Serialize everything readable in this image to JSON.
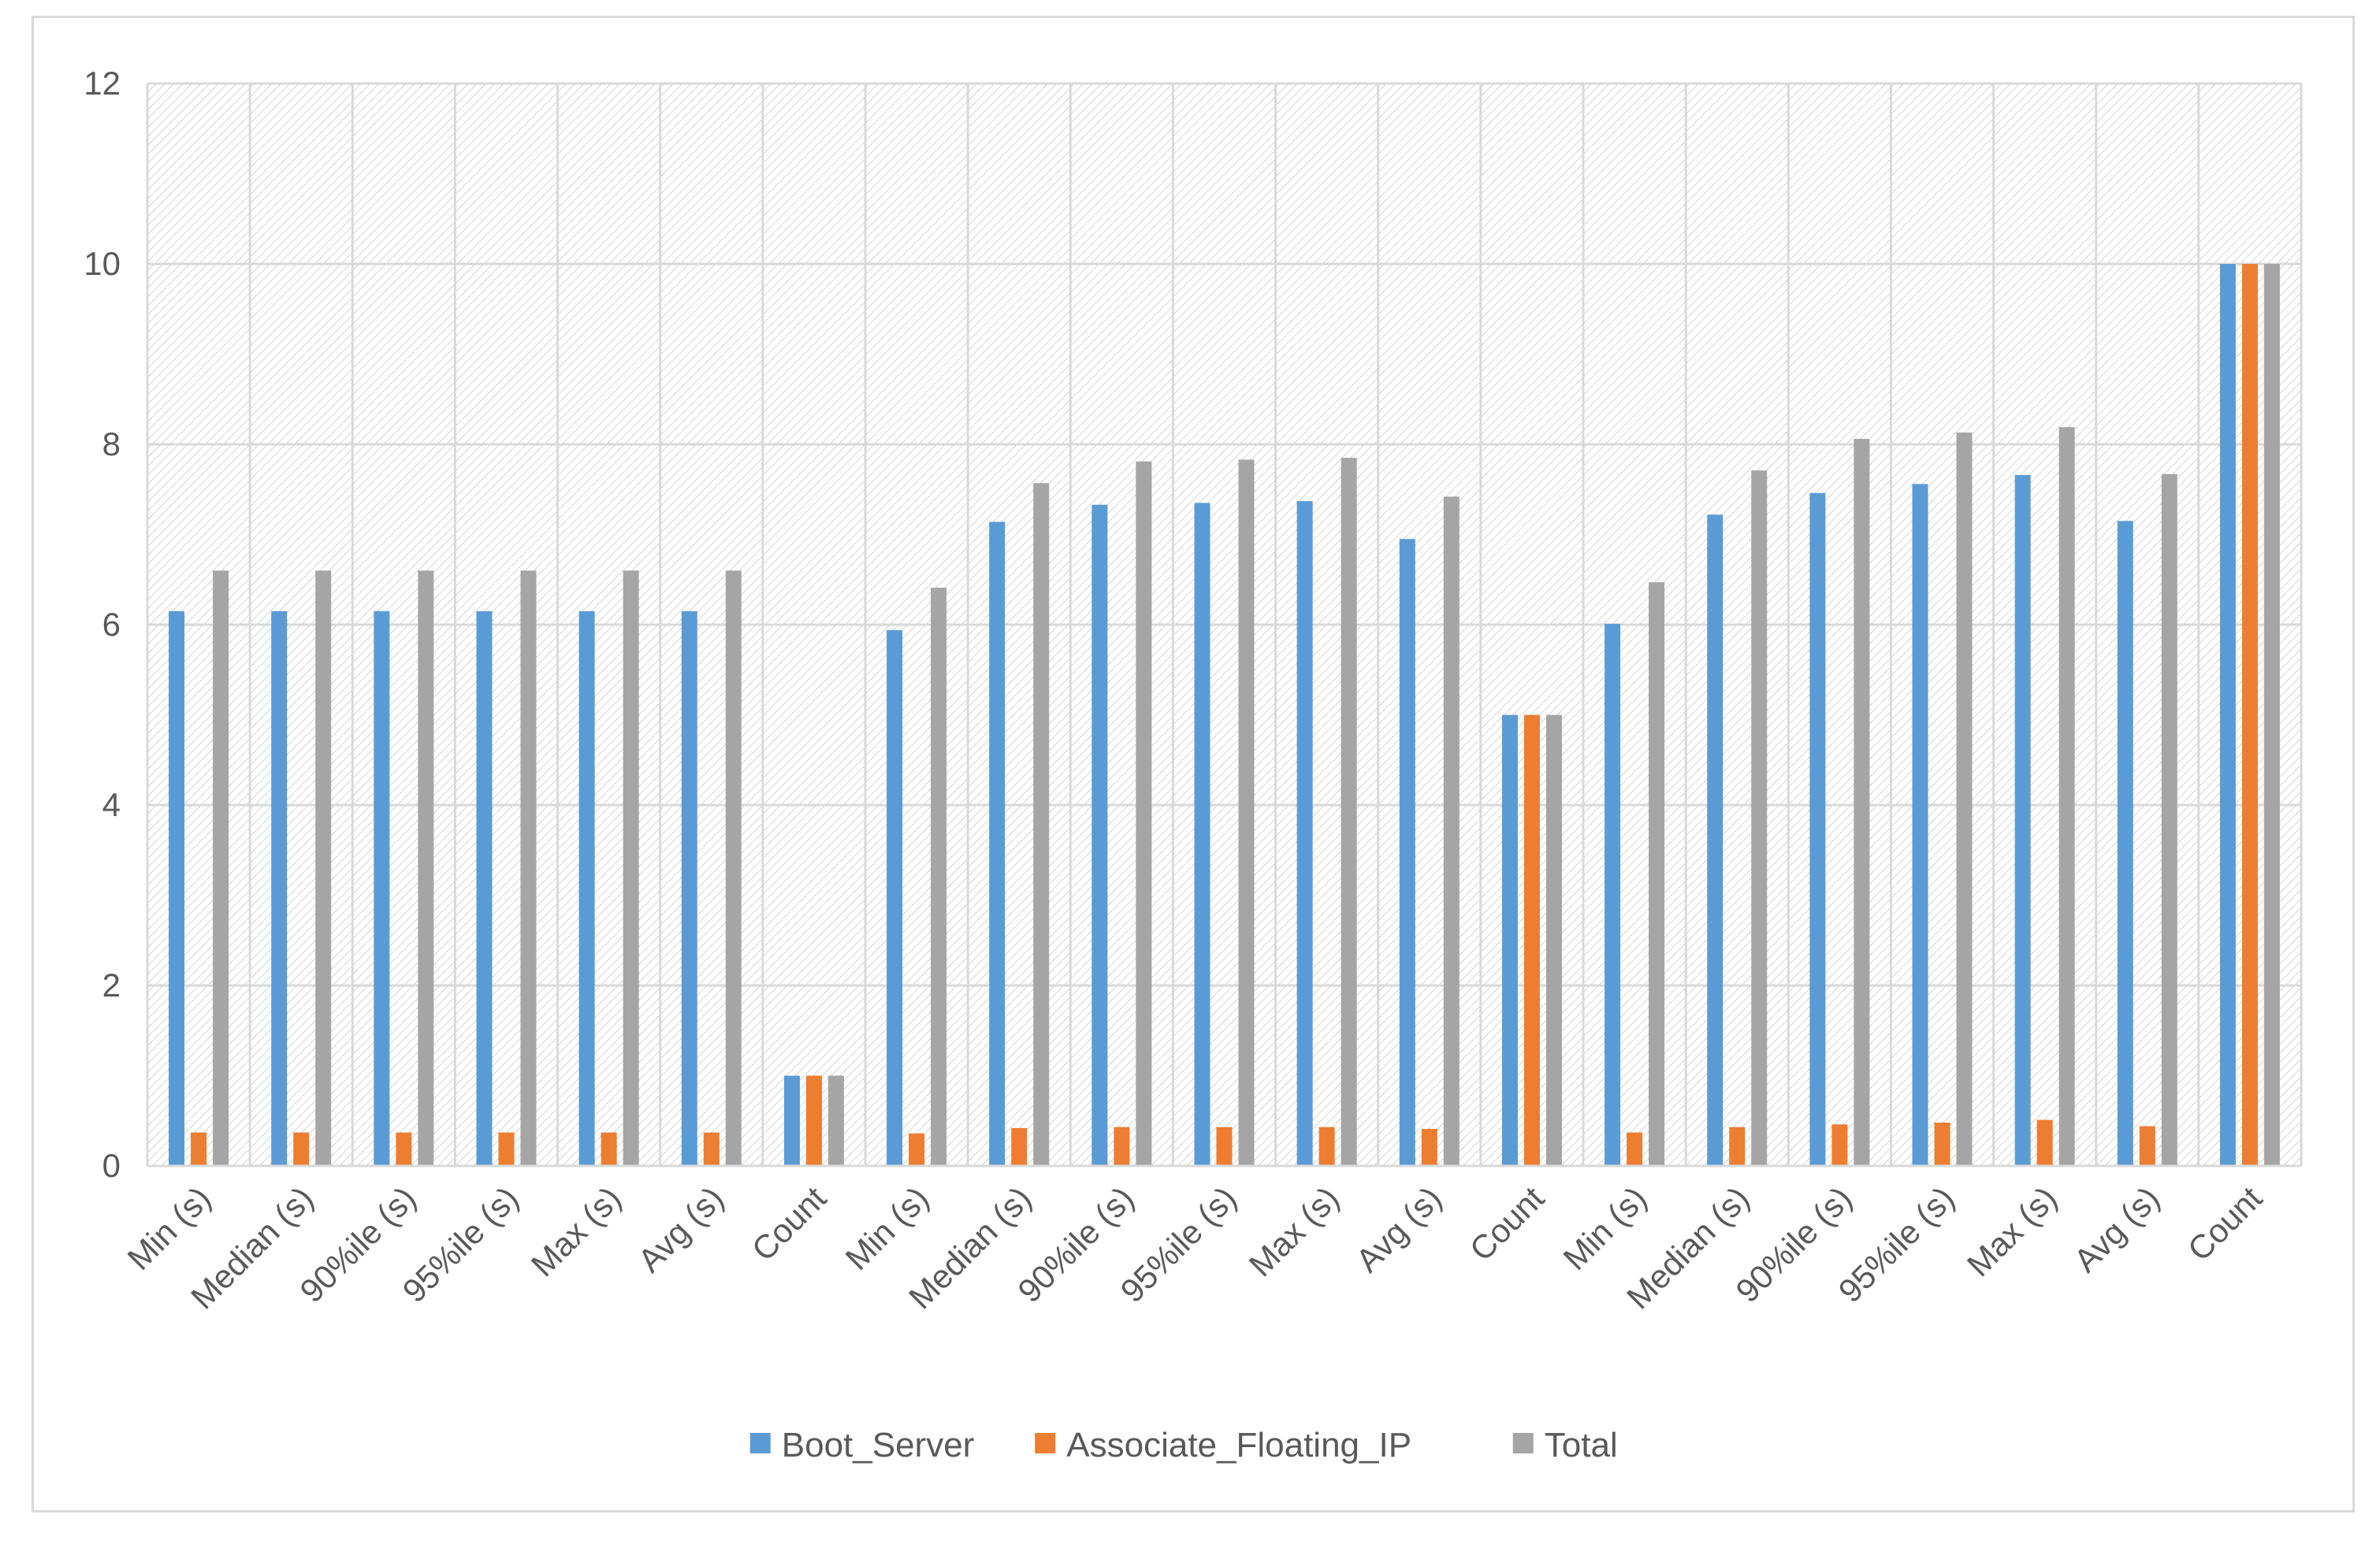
{
  "chart_data": {
    "type": "bar",
    "title": "",
    "xlabel": "",
    "ylabel": "",
    "ylim": [
      0,
      12
    ],
    "yticks": [
      0,
      2,
      4,
      6,
      8,
      10,
      12
    ],
    "grid": true,
    "legend_position": "bottom",
    "categories": [
      "Min (s)",
      "Median (s)",
      "90%ile (s)",
      "95%ile (s)",
      "Max (s)",
      "Avg (s)",
      "Count",
      "Min (s)",
      "Median (s)",
      "90%ile (s)",
      "95%ile (s)",
      "Max (s)",
      "Avg (s)",
      "Count",
      "Min (s)",
      "Median (s)",
      "90%ile (s)",
      "95%ile (s)",
      "Max (s)",
      "Avg (s)",
      "Count"
    ],
    "series": [
      {
        "name": "Boot_Server",
        "color": "#5b9bd5",
        "values": [
          6.15,
          6.15,
          6.15,
          6.15,
          6.15,
          6.15,
          1,
          5.94,
          7.14,
          7.33,
          7.35,
          7.37,
          6.95,
          5,
          6.01,
          7.22,
          7.46,
          7.56,
          7.66,
          7.15,
          10
        ]
      },
      {
        "name": "Associate_Floating_IP",
        "color": "#ed7d31",
        "values": [
          0.37,
          0.37,
          0.37,
          0.37,
          0.37,
          0.37,
          1,
          0.36,
          0.42,
          0.43,
          0.43,
          0.43,
          0.41,
          5,
          0.37,
          0.43,
          0.46,
          0.48,
          0.51,
          0.44,
          10
        ]
      },
      {
        "name": "Total",
        "color": "#a5a5a5",
        "values": [
          6.6,
          6.6,
          6.6,
          6.6,
          6.6,
          6.6,
          1,
          6.41,
          7.57,
          7.81,
          7.83,
          7.85,
          7.42,
          5,
          6.47,
          7.71,
          8.06,
          8.13,
          8.19,
          7.67,
          10
        ]
      }
    ]
  }
}
